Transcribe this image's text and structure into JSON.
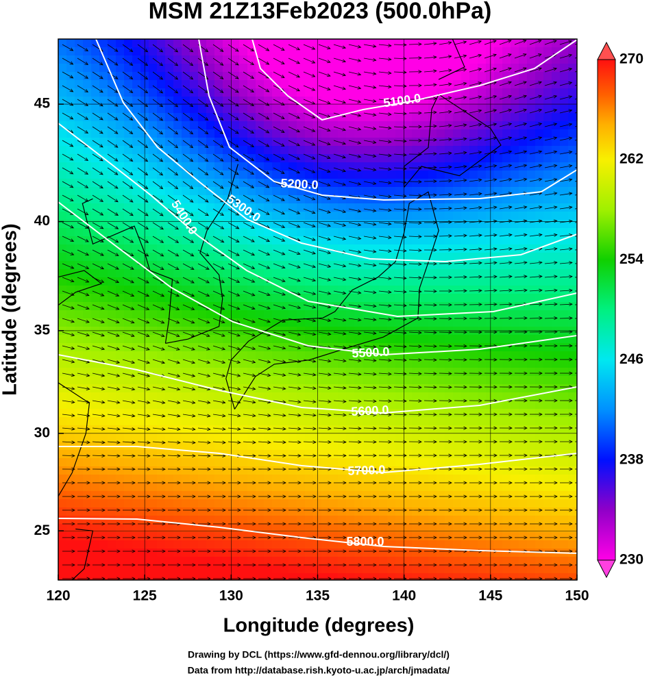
{
  "title": "MSM 21Z13Feb2023 (500.0hPa)",
  "x_axis": {
    "label": "Longitude (degrees)",
    "lim": [
      120,
      150
    ],
    "ticks": [
      120,
      125,
      130,
      135,
      140,
      145,
      150
    ]
  },
  "y_axis": {
    "label": "Latitude  (degrees)",
    "lim": [
      22.4,
      47.6
    ],
    "ticks": [
      25,
      30,
      35,
      40,
      45
    ],
    "projection": "mercator"
  },
  "colorbar": {
    "lim": [
      230,
      270
    ],
    "ticks": [
      230,
      238,
      246,
      254,
      262,
      270
    ]
  },
  "contours": [
    {
      "value": 5100,
      "label": "5100.0"
    },
    {
      "value": 5200,
      "label": "5200.0"
    },
    {
      "value": 5300,
      "label": "5300.0"
    },
    {
      "value": 5400,
      "label": "5400.0"
    },
    {
      "value": 5500,
      "label": "5500.0"
    },
    {
      "value": 5600,
      "label": "5600.0"
    },
    {
      "value": 5700,
      "label": "5700.0"
    },
    {
      "value": 5800,
      "label": "5800.0"
    }
  ],
  "credits": [
    "Drawing by DCL (https://www.gfd-dennou.org/library/dcl/)",
    "Data from http://database.rish.kyoto-u.ac.jp/arch/jmadata/"
  ]
}
